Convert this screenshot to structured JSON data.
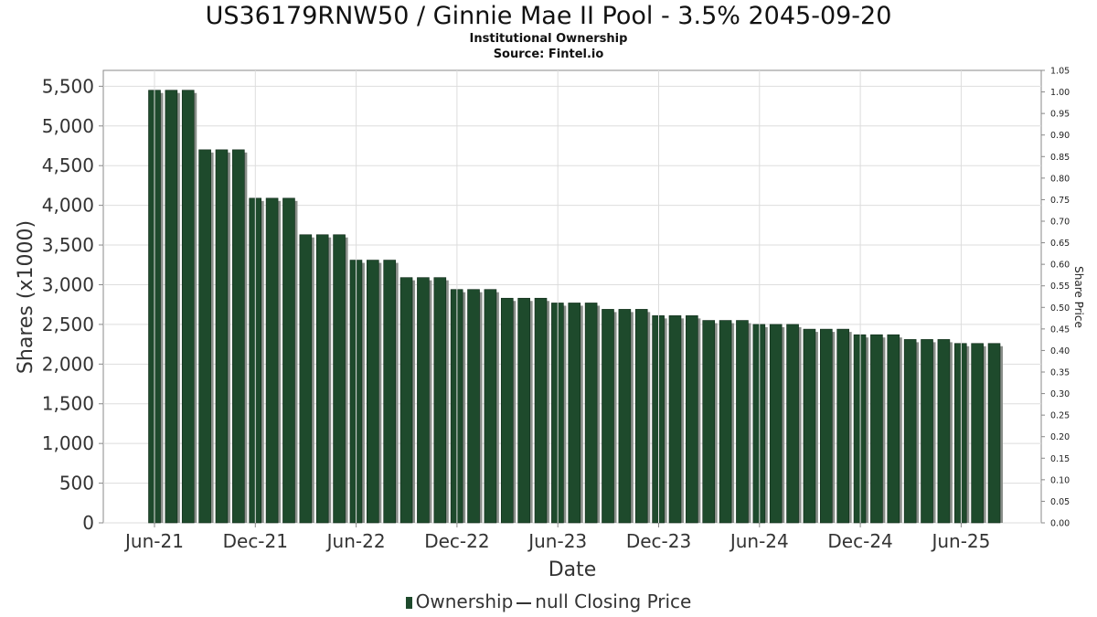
{
  "header": {
    "title": "US36179RNW50 / Ginnie Mae II Pool - 3.5% 2045-09-20",
    "subtitle1": "Institutional Ownership",
    "subtitle2": "Source: Fintel.io"
  },
  "legend": {
    "ownership_label": "Ownership",
    "price_label": "null Closing Price"
  },
  "colors": {
    "bar": "#1e4a2c",
    "bar_shadow": "#8a8f8a",
    "grid": "#dddddd"
  },
  "chart_data": {
    "type": "bar",
    "title": "US36179RNW50 / Ginnie Mae II Pool - 3.5% 2045-09-20",
    "subtitle": "Institutional Ownership",
    "xlabel": "Date",
    "ylabel": "Shares (x1000)",
    "y2label": "Share Price",
    "ylim": [
      0,
      5700
    ],
    "y2lim": [
      0,
      1.05
    ],
    "yticks": [
      "0",
      "500",
      "1,000",
      "1,500",
      "2,000",
      "2,500",
      "3,000",
      "3,500",
      "4,000",
      "4,500",
      "5,000",
      "5,500"
    ],
    "y2ticks": [
      "0.00",
      "0.05",
      "0.10",
      "0.15",
      "0.20",
      "0.25",
      "0.30",
      "0.35",
      "0.40",
      "0.45",
      "0.50",
      "0.55",
      "0.60",
      "0.65",
      "0.70",
      "0.75",
      "0.80",
      "0.85",
      "0.90",
      "0.95",
      "1.00",
      "1.05"
    ],
    "xticks": [
      "Jun-21",
      "Dec-21",
      "Jun-22",
      "Dec-22",
      "Jun-23",
      "Dec-23",
      "Jun-24",
      "Dec-24",
      "Jun-25"
    ],
    "grid": true,
    "legend_position": "bottom",
    "series": [
      {
        "name": "Ownership",
        "values": [
          5450,
          5450,
          5450,
          4700,
          4700,
          4700,
          4090,
          4090,
          4090,
          3630,
          3630,
          3630,
          3310,
          3310,
          3310,
          3090,
          3090,
          3090,
          2940,
          2940,
          2940,
          2830,
          2830,
          2830,
          2770,
          2770,
          2770,
          2690,
          2690,
          2690,
          2610,
          2610,
          2610,
          2550,
          2550,
          2550,
          2500,
          2500,
          2500,
          2440,
          2440,
          2440,
          2370,
          2370,
          2370,
          2310,
          2310,
          2310,
          2260,
          2260,
          2260
        ]
      }
    ]
  }
}
